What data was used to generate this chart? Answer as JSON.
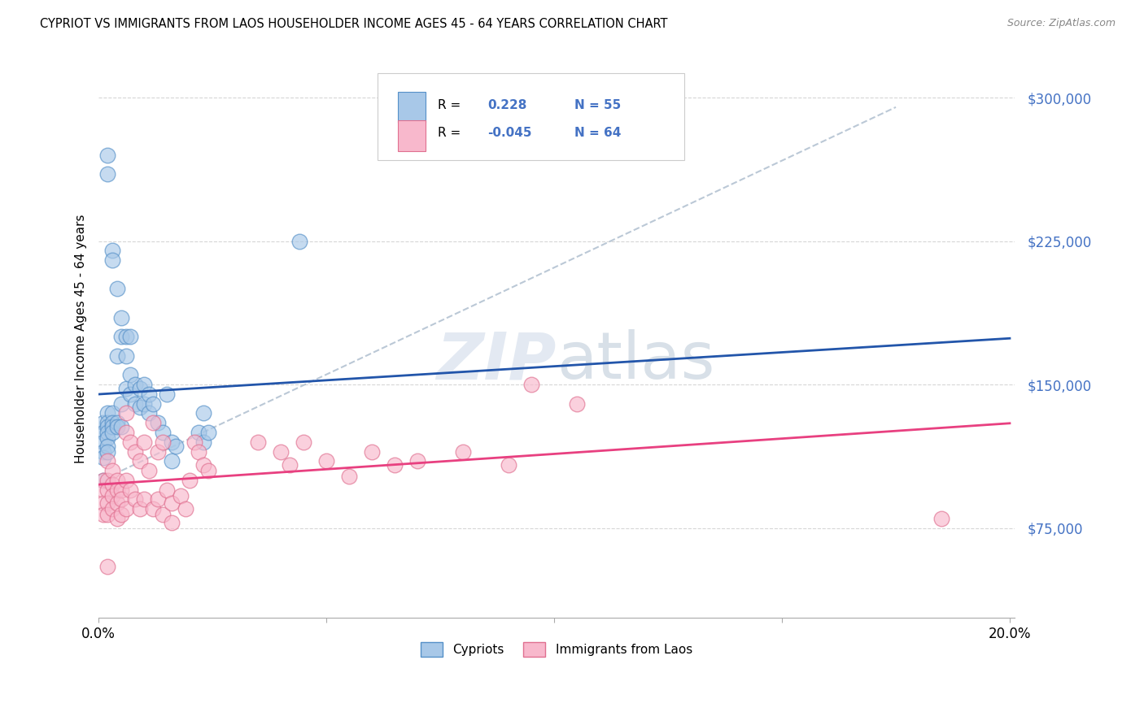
{
  "title": "CYPRIOT VS IMMIGRANTS FROM LAOS HOUSEHOLDER INCOME AGES 45 - 64 YEARS CORRELATION CHART",
  "source": "Source: ZipAtlas.com",
  "ylabel": "Householder Income Ages 45 - 64 years",
  "xlim": [
    0.0,
    0.201
  ],
  "ylim": [
    28000,
    320000
  ],
  "yticks": [
    75000,
    150000,
    225000,
    300000
  ],
  "ytick_labels": [
    "$75,000",
    "$150,000",
    "$225,000",
    "$300,000"
  ],
  "xticks": [
    0.0,
    0.05,
    0.1,
    0.15,
    0.2
  ],
  "xtick_labels": [
    "0.0%",
    "",
    "",
    "",
    "20.0%"
  ],
  "blue_scatter_color": "#a8c8e8",
  "blue_edge_color": "#5590c8",
  "blue_line_color": "#2255aa",
  "pink_scatter_color": "#f8b8cc",
  "pink_edge_color": "#e07090",
  "pink_line_color": "#e84080",
  "dashed_line_color": "#aabbcc",
  "R_cyp": 0.228,
  "N_cyp": 55,
  "R_laos": -0.045,
  "N_laos": 64,
  "cypriot_x": [
    0.001,
    0.001,
    0.001,
    0.001,
    0.001,
    0.002,
    0.002,
    0.002,
    0.002,
    0.002,
    0.002,
    0.002,
    0.002,
    0.002,
    0.003,
    0.003,
    0.003,
    0.003,
    0.003,
    0.003,
    0.004,
    0.004,
    0.004,
    0.004,
    0.005,
    0.005,
    0.005,
    0.005,
    0.006,
    0.006,
    0.006,
    0.007,
    0.007,
    0.007,
    0.008,
    0.008,
    0.009,
    0.009,
    0.01,
    0.01,
    0.011,
    0.011,
    0.012,
    0.013,
    0.014,
    0.015,
    0.016,
    0.016,
    0.017,
    0.022,
    0.023,
    0.023,
    0.024,
    0.044,
    0.001
  ],
  "cypriot_y": [
    130000,
    125000,
    120000,
    115000,
    112000,
    270000,
    260000,
    135000,
    130000,
    128000,
    125000,
    122000,
    118000,
    115000,
    220000,
    215000,
    135000,
    130000,
    128000,
    125000,
    200000,
    165000,
    130000,
    128000,
    185000,
    175000,
    140000,
    128000,
    175000,
    165000,
    148000,
    175000,
    155000,
    145000,
    150000,
    140000,
    148000,
    138000,
    150000,
    140000,
    145000,
    135000,
    140000,
    130000,
    125000,
    145000,
    120000,
    110000,
    118000,
    125000,
    135000,
    120000,
    125000,
    225000,
    100000
  ],
  "laos_x": [
    0.001,
    0.001,
    0.001,
    0.001,
    0.002,
    0.002,
    0.002,
    0.002,
    0.002,
    0.003,
    0.003,
    0.003,
    0.003,
    0.004,
    0.004,
    0.004,
    0.004,
    0.005,
    0.005,
    0.005,
    0.006,
    0.006,
    0.006,
    0.006,
    0.007,
    0.007,
    0.008,
    0.008,
    0.009,
    0.009,
    0.01,
    0.01,
    0.011,
    0.012,
    0.012,
    0.013,
    0.013,
    0.014,
    0.014,
    0.015,
    0.016,
    0.016,
    0.018,
    0.019,
    0.02,
    0.021,
    0.022,
    0.023,
    0.024,
    0.035,
    0.04,
    0.042,
    0.045,
    0.05,
    0.055,
    0.06,
    0.065,
    0.07,
    0.08,
    0.09,
    0.095,
    0.105,
    0.185,
    0.002
  ],
  "laos_y": [
    100000,
    95000,
    88000,
    82000,
    110000,
    100000,
    95000,
    88000,
    82000,
    105000,
    98000,
    92000,
    85000,
    100000,
    95000,
    88000,
    80000,
    95000,
    90000,
    82000,
    135000,
    125000,
    100000,
    85000,
    120000,
    95000,
    115000,
    90000,
    110000,
    85000,
    120000,
    90000,
    105000,
    130000,
    85000,
    115000,
    90000,
    120000,
    82000,
    95000,
    88000,
    78000,
    92000,
    85000,
    100000,
    120000,
    115000,
    108000,
    105000,
    120000,
    115000,
    108000,
    120000,
    110000,
    102000,
    115000,
    108000,
    110000,
    115000,
    108000,
    150000,
    140000,
    80000,
    55000
  ]
}
